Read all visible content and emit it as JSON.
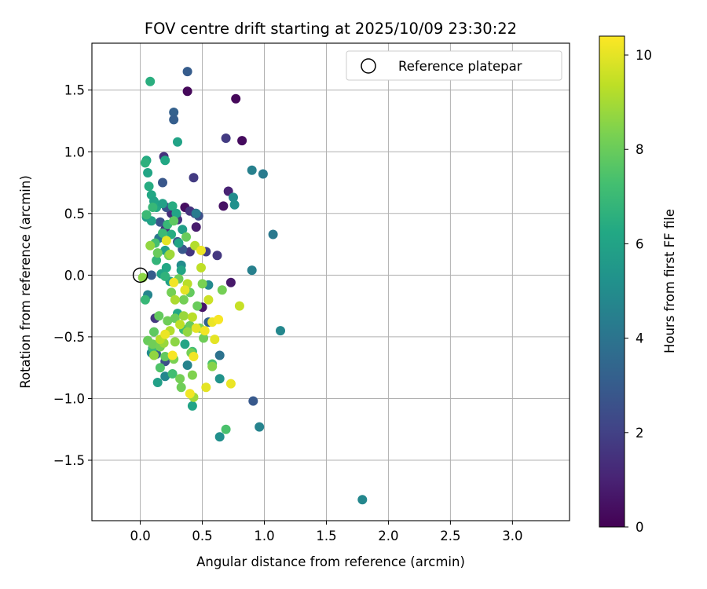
{
  "chart_data": {
    "type": "scatter",
    "title": "FOV centre drift starting at 2025/10/09 23:30:22",
    "xlabel": "Angular distance from reference (arcmin)",
    "ylabel": "Rotation from reference (arcmin)",
    "xlim": [
      -0.39,
      3.46
    ],
    "ylim": [
      -1.99,
      1.88
    ],
    "xticks": [
      0.0,
      0.5,
      1.0,
      1.5,
      2.0,
      2.5,
      3.0
    ],
    "xtick_labels": [
      "0.0",
      "0.5",
      "1.0",
      "1.5",
      "2.0",
      "2.5",
      "3.0"
    ],
    "yticks": [
      -1.5,
      -1.0,
      -0.5,
      0.0,
      0.5,
      1.0,
      1.5
    ],
    "ytick_labels": [
      "−1.5",
      "−1.0",
      "−0.5",
      "0.0",
      "0.5",
      "1.0",
      "1.5"
    ],
    "grid": true,
    "legend": {
      "label": "Reference platepar",
      "position": "top-right"
    },
    "reference_point": {
      "x": 0.0,
      "y": 0.0
    },
    "colorbar": {
      "label": "Hours from first FF file",
      "colormap": "viridis",
      "range": [
        0,
        10.4
      ],
      "ticks": [
        0,
        2,
        4,
        6,
        8,
        10
      ],
      "tick_labels": [
        "0",
        "2",
        "4",
        "6",
        "8",
        "10"
      ]
    },
    "points": [
      {
        "x": 0.38,
        "y": 1.49,
        "h": 0.2
      },
      {
        "x": 0.77,
        "y": 1.43,
        "h": 0.2
      },
      {
        "x": 0.82,
        "y": 1.09,
        "h": 0.3
      },
      {
        "x": 0.71,
        "y": 0.68,
        "h": 1.0
      },
      {
        "x": 0.67,
        "y": 0.56,
        "h": 0.5
      },
      {
        "x": 0.36,
        "y": 0.55,
        "h": 0.4
      },
      {
        "x": 0.29,
        "y": 0.49,
        "h": 0.6
      },
      {
        "x": 0.45,
        "y": 0.39,
        "h": 0.8
      },
      {
        "x": 0.73,
        "y": -0.06,
        "h": 0.7
      },
      {
        "x": 0.5,
        "y": -0.26,
        "h": 0.6
      },
      {
        "x": 0.19,
        "y": 0.96,
        "h": 1.5
      },
      {
        "x": 0.69,
        "y": 1.11,
        "h": 1.8
      },
      {
        "x": 0.43,
        "y": 0.79,
        "h": 1.8
      },
      {
        "x": 0.4,
        "y": 0.52,
        "h": 1.5
      },
      {
        "x": 0.44,
        "y": 0.5,
        "h": 1.8
      },
      {
        "x": 0.62,
        "y": 0.16,
        "h": 1.7
      },
      {
        "x": 0.53,
        "y": 0.19,
        "h": 1.9
      },
      {
        "x": 0.2,
        "y": 0.37,
        "h": 1.4
      },
      {
        "x": 0.3,
        "y": 0.45,
        "h": 1.6
      },
      {
        "x": 0.12,
        "y": -0.35,
        "h": 1.7
      },
      {
        "x": 0.4,
        "y": 0.19,
        "h": 1.6
      },
      {
        "x": 0.25,
        "y": 0.5,
        "h": 1.3
      },
      {
        "x": 0.38,
        "y": 1.65,
        "h": 3.0
      },
      {
        "x": 0.27,
        "y": 1.32,
        "h": 3.2
      },
      {
        "x": 0.27,
        "y": 1.26,
        "h": 3.1
      },
      {
        "x": 0.18,
        "y": 0.75,
        "h": 2.8
      },
      {
        "x": 0.21,
        "y": 0.55,
        "h": 2.6
      },
      {
        "x": 0.16,
        "y": 0.43,
        "h": 2.7
      },
      {
        "x": 0.34,
        "y": 0.21,
        "h": 2.9
      },
      {
        "x": 0.47,
        "y": 0.48,
        "h": 2.5
      },
      {
        "x": 0.09,
        "y": 0.0,
        "h": 3.0
      },
      {
        "x": 0.2,
        "y": -0.7,
        "h": 2.5
      },
      {
        "x": 0.91,
        "y": -1.02,
        "h": 2.9
      },
      {
        "x": 0.55,
        "y": -0.38,
        "h": 3.3
      },
      {
        "x": 0.3,
        "y": 0.27,
        "h": 2.8
      },
      {
        "x": 0.13,
        "y": -0.64,
        "h": 3.2
      },
      {
        "x": 0.9,
        "y": 0.85,
        "h": 4.5
      },
      {
        "x": 0.99,
        "y": 0.82,
        "h": 4.3
      },
      {
        "x": 1.07,
        "y": 0.33,
        "h": 4.2
      },
      {
        "x": 0.9,
        "y": 0.04,
        "h": 4.5
      },
      {
        "x": 1.13,
        "y": -0.45,
        "h": 4.8
      },
      {
        "x": 0.96,
        "y": -1.23,
        "h": 4.6
      },
      {
        "x": 1.79,
        "y": -1.82,
        "h": 4.8
      },
      {
        "x": 0.64,
        "y": -0.65,
        "h": 3.9
      },
      {
        "x": 0.75,
        "y": 0.63,
        "h": 5.0
      },
      {
        "x": 0.76,
        "y": 0.57,
        "h": 5.2
      },
      {
        "x": 0.64,
        "y": -0.84,
        "h": 5.3
      },
      {
        "x": 0.64,
        "y": -1.31,
        "h": 5.1
      },
      {
        "x": 0.55,
        "y": -0.08,
        "h": 4.9
      },
      {
        "x": 0.38,
        "y": -0.73,
        "h": 4.6
      },
      {
        "x": 0.06,
        "y": -0.16,
        "h": 4.7
      },
      {
        "x": 0.15,
        "y": 0.3,
        "h": 4.1
      },
      {
        "x": 0.45,
        "y": 0.5,
        "h": 4.3
      },
      {
        "x": 0.2,
        "y": -0.82,
        "h": 4.8
      },
      {
        "x": 0.09,
        "y": -0.63,
        "h": 5.0
      },
      {
        "x": 0.33,
        "y": 0.08,
        "h": 5.0
      },
      {
        "x": 0.3,
        "y": 1.08,
        "h": 6.0
      },
      {
        "x": 0.2,
        "y": 0.93,
        "h": 6.2
      },
      {
        "x": 0.05,
        "y": 0.93,
        "h": 6.3
      },
      {
        "x": 0.06,
        "y": 0.83,
        "h": 6.1
      },
      {
        "x": 0.07,
        "y": 0.72,
        "h": 6.4
      },
      {
        "x": 0.09,
        "y": 0.65,
        "h": 6.2
      },
      {
        "x": 0.11,
        "y": 0.6,
        "h": 6.0
      },
      {
        "x": 0.13,
        "y": 0.55,
        "h": 6.2
      },
      {
        "x": 0.18,
        "y": 0.58,
        "h": 5.9
      },
      {
        "x": 0.26,
        "y": 0.56,
        "h": 6.4
      },
      {
        "x": 0.29,
        "y": 0.5,
        "h": 6.0
      },
      {
        "x": 0.34,
        "y": 0.37,
        "h": 5.8
      },
      {
        "x": 0.31,
        "y": 0.26,
        "h": 6.1
      },
      {
        "x": 0.25,
        "y": 0.33,
        "h": 6.4
      },
      {
        "x": 0.2,
        "y": 0.2,
        "h": 5.9
      },
      {
        "x": 0.17,
        "y": 0.01,
        "h": 6.0
      },
      {
        "x": 0.21,
        "y": 0.06,
        "h": 6.2
      },
      {
        "x": 0.24,
        "y": -0.05,
        "h": 5.9
      },
      {
        "x": 0.33,
        "y": 0.04,
        "h": 6.1
      },
      {
        "x": 0.05,
        "y": 0.47,
        "h": 5.7
      },
      {
        "x": 0.09,
        "y": 0.44,
        "h": 6.0
      },
      {
        "x": 0.14,
        "y": -0.87,
        "h": 5.9
      },
      {
        "x": 0.36,
        "y": -0.56,
        "h": 6.1
      },
      {
        "x": 0.3,
        "y": -0.31,
        "h": 6.2
      },
      {
        "x": 0.42,
        "y": -1.06,
        "h": 6.0
      },
      {
        "x": 0.08,
        "y": 1.57,
        "h": 6.5
      },
      {
        "x": 0.04,
        "y": 0.91,
        "h": 6.6
      },
      {
        "x": 0.1,
        "y": 0.55,
        "h": 6.9
      },
      {
        "x": 0.18,
        "y": 0.34,
        "h": 7.0
      },
      {
        "x": 0.13,
        "y": 0.12,
        "h": 6.8
      },
      {
        "x": 0.2,
        "y": -0.01,
        "h": 6.7
      },
      {
        "x": 0.04,
        "y": -0.2,
        "h": 6.9
      },
      {
        "x": 0.1,
        "y": -0.59,
        "h": 7.0
      },
      {
        "x": 0.26,
        "y": -0.8,
        "h": 7.2
      },
      {
        "x": 0.35,
        "y": -0.44,
        "h": 7.1
      },
      {
        "x": 0.69,
        "y": -1.25,
        "h": 7.4
      },
      {
        "x": 0.58,
        "y": -0.72,
        "h": 7.3
      },
      {
        "x": 0.42,
        "y": -0.62,
        "h": 7.1
      },
      {
        "x": 0.22,
        "y": 0.41,
        "h": 6.9
      },
      {
        "x": 0.05,
        "y": 0.49,
        "h": 7.0
      },
      {
        "x": 0.16,
        "y": -0.75,
        "h": 7.5
      },
      {
        "x": 0.12,
        "y": 0.26,
        "h": 7.3
      },
      {
        "x": 0.27,
        "y": 0.44,
        "h": 7.8
      },
      {
        "x": 0.15,
        "y": -0.33,
        "h": 7.9
      },
      {
        "x": 0.22,
        "y": -0.37,
        "h": 8.1
      },
      {
        "x": 0.28,
        "y": -0.35,
        "h": 8.0
      },
      {
        "x": 0.35,
        "y": -0.2,
        "h": 8.2
      },
      {
        "x": 0.4,
        "y": -0.14,
        "h": 7.9
      },
      {
        "x": 0.46,
        "y": -0.25,
        "h": 8.0
      },
      {
        "x": 0.5,
        "y": -0.07,
        "h": 8.3
      },
      {
        "x": 0.31,
        "y": -0.03,
        "h": 8.1
      },
      {
        "x": 0.25,
        "y": -0.14,
        "h": 8.2
      },
      {
        "x": 0.14,
        "y": 0.18,
        "h": 8.0
      },
      {
        "x": 0.23,
        "y": 0.16,
        "h": 8.3
      },
      {
        "x": 0.11,
        "y": -0.46,
        "h": 7.8
      },
      {
        "x": 0.06,
        "y": -0.53,
        "h": 8.0
      },
      {
        "x": 0.1,
        "y": -0.56,
        "h": 8.1
      },
      {
        "x": 0.16,
        "y": -0.58,
        "h": 8.2
      },
      {
        "x": 0.2,
        "y": -0.66,
        "h": 7.9
      },
      {
        "x": 0.27,
        "y": -0.68,
        "h": 8.3
      },
      {
        "x": 0.32,
        "y": -0.84,
        "h": 8.2
      },
      {
        "x": 0.33,
        "y": -0.91,
        "h": 8.1
      },
      {
        "x": 0.42,
        "y": -0.81,
        "h": 8.4
      },
      {
        "x": 0.41,
        "y": -0.63,
        "h": 8.2
      },
      {
        "x": 0.4,
        "y": -0.41,
        "h": 8.0
      },
      {
        "x": 0.48,
        "y": -0.43,
        "h": 8.3
      },
      {
        "x": 0.51,
        "y": -0.51,
        "h": 8.1
      },
      {
        "x": 0.58,
        "y": -0.74,
        "h": 8.5
      },
      {
        "x": 0.66,
        "y": -0.12,
        "h": 8.2
      },
      {
        "x": 0.37,
        "y": 0.31,
        "h": 8.0
      },
      {
        "x": 0.02,
        "y": -0.02,
        "h": 8.6
      },
      {
        "x": 0.08,
        "y": 0.24,
        "h": 8.7
      },
      {
        "x": 0.24,
        "y": 0.17,
        "h": 8.9
      },
      {
        "x": 0.35,
        "y": -0.33,
        "h": 8.8
      },
      {
        "x": 0.38,
        "y": -0.46,
        "h": 8.7
      },
      {
        "x": 0.43,
        "y": -0.99,
        "h": 8.9
      },
      {
        "x": 0.28,
        "y": -0.54,
        "h": 8.6
      },
      {
        "x": 0.19,
        "y": -0.55,
        "h": 8.8
      },
      {
        "x": 0.11,
        "y": -0.65,
        "h": 8.7
      },
      {
        "x": 0.44,
        "y": 0.24,
        "h": 9.2
      },
      {
        "x": 0.49,
        "y": 0.06,
        "h": 9.4
      },
      {
        "x": 0.38,
        "y": -0.07,
        "h": 9.3
      },
      {
        "x": 0.28,
        "y": -0.2,
        "h": 9.1
      },
      {
        "x": 0.42,
        "y": -0.34,
        "h": 9.3
      },
      {
        "x": 0.8,
        "y": -0.25,
        "h": 9.5
      },
      {
        "x": 0.55,
        "y": -0.2,
        "h": 9.6
      },
      {
        "x": 0.32,
        "y": -0.4,
        "h": 9.4
      },
      {
        "x": 0.24,
        "y": -0.45,
        "h": 9.2
      },
      {
        "x": 0.16,
        "y": -0.52,
        "h": 9.3
      },
      {
        "x": 0.21,
        "y": 0.28,
        "h": 10.0
      },
      {
        "x": 0.49,
        "y": 0.2,
        "h": 10.1
      },
      {
        "x": 0.27,
        "y": -0.06,
        "h": 10.2
      },
      {
        "x": 0.36,
        "y": -0.12,
        "h": 10.0
      },
      {
        "x": 0.58,
        "y": -0.38,
        "h": 10.1
      },
      {
        "x": 0.63,
        "y": -0.36,
        "h": 10.3
      },
      {
        "x": 0.45,
        "y": -0.43,
        "h": 10.0
      },
      {
        "x": 0.52,
        "y": -0.45,
        "h": 10.2
      },
      {
        "x": 0.2,
        "y": -0.48,
        "h": 10.1
      },
      {
        "x": 0.6,
        "y": -0.52,
        "h": 10.0
      },
      {
        "x": 0.43,
        "y": -0.66,
        "h": 10.2
      },
      {
        "x": 0.26,
        "y": -0.65,
        "h": 10.3
      },
      {
        "x": 0.73,
        "y": -0.88,
        "h": 10.1
      },
      {
        "x": 0.53,
        "y": -0.91,
        "h": 10.0
      },
      {
        "x": 0.4,
        "y": -0.96,
        "h": 10.2
      }
    ]
  }
}
